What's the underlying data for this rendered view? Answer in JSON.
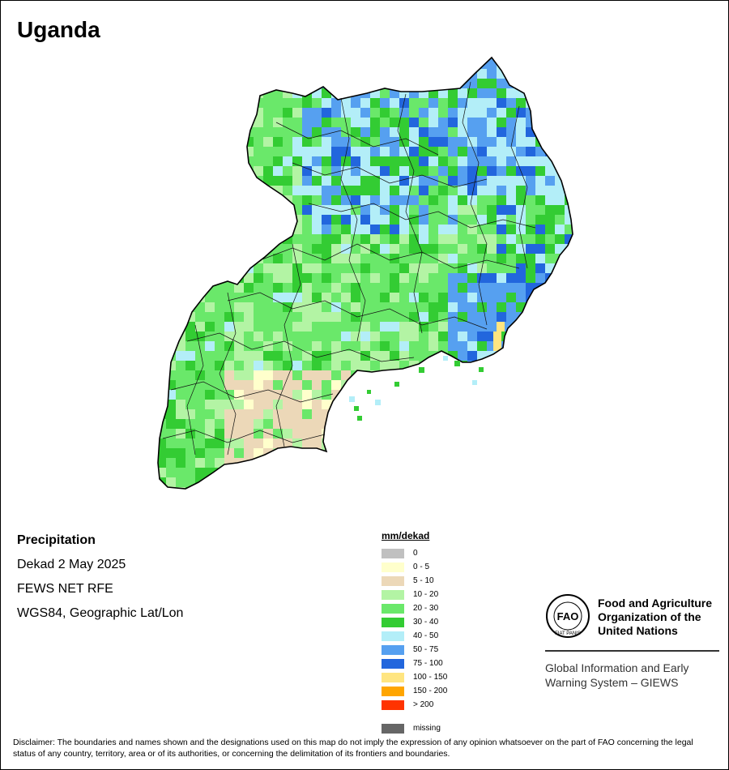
{
  "header": {
    "title": "Uganda"
  },
  "info": {
    "variable": "Precipitation",
    "period": "Dekad 2 May 2025",
    "source": "FEWS NET RFE",
    "projection": "WGS84, Geographic Lat/Lon"
  },
  "legend": {
    "title": "mm/dekad",
    "items": [
      {
        "label": "0",
        "color": "#c0c0c0"
      },
      {
        "label": "0 - 5",
        "color": "#ffffcc"
      },
      {
        "label": "5 - 10",
        "color": "#ecd8b8"
      },
      {
        "label": "10 - 20",
        "color": "#b3f4a4"
      },
      {
        "label": "20 - 30",
        "color": "#6ae86a"
      },
      {
        "label": "30 - 40",
        "color": "#33cc33"
      },
      {
        "label": "40 - 50",
        "color": "#b3eef8"
      },
      {
        "label": "50 - 75",
        "color": "#56a0f0"
      },
      {
        "label": "75 - 100",
        "color": "#2266dd"
      },
      {
        "label": "100 - 150",
        "color": "#ffe580"
      },
      {
        "label": "150 - 200",
        "color": "#ffa500"
      },
      {
        "label": "> 200",
        "color": "#ff3300"
      }
    ],
    "missing": {
      "label": "missing",
      "color": "#666666"
    }
  },
  "branding": {
    "logo_text": "FAO",
    "logo_motto": "FIAT PANIS",
    "org_name": "Food and Agriculture Organization of the United Nations",
    "system_name": "Global Information and Early Warning System – GIEWS"
  },
  "disclaimer": "Disclaimer: The boundaries and names shown and the designations used on this map do not imply the expression of any opinion whatsoever on the part of FAO concerning the legal status of any country, territory, area or of its authorities, or concerning the delimitation of its frontiers and boundaries."
}
